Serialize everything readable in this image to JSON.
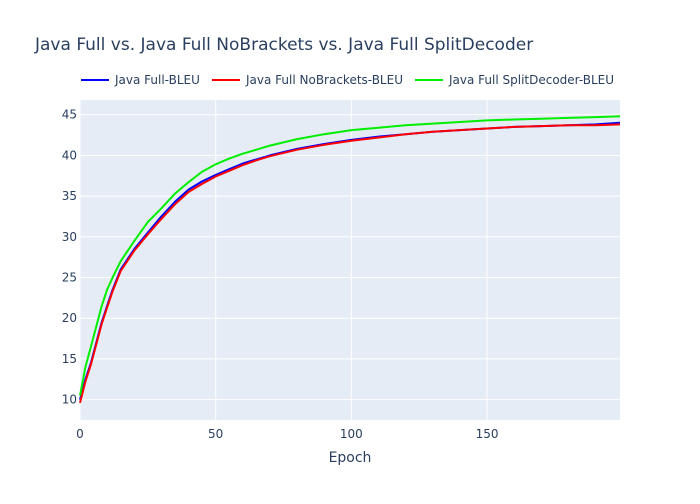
{
  "chart_data": {
    "type": "line",
    "title": "Java Full vs. Java Full NoBrackets vs. Java Full SplitDecoder",
    "xlabel": "Epoch",
    "ylabel": "",
    "xlim": [
      0,
      199
    ],
    "ylim": [
      7.5,
      46.8
    ],
    "xticks": [
      0,
      50,
      100,
      150
    ],
    "yticks": [
      10,
      15,
      20,
      25,
      30,
      35,
      40,
      45
    ],
    "grid": true,
    "legend_position": "top",
    "series": [
      {
        "name": "Java Full-BLEU",
        "color": "#0000ff",
        "x": [
          0,
          2,
          4,
          6,
          8,
          10,
          12,
          15,
          20,
          25,
          30,
          35,
          40,
          45,
          50,
          55,
          60,
          65,
          70,
          80,
          90,
          100,
          110,
          120,
          130,
          140,
          150,
          160,
          170,
          180,
          190,
          199
        ],
        "y": [
          10.0,
          12.5,
          14.5,
          17.0,
          19.5,
          21.5,
          23.5,
          26.0,
          28.5,
          30.5,
          32.5,
          34.3,
          35.8,
          36.8,
          37.6,
          38.3,
          39.0,
          39.5,
          40.0,
          40.8,
          41.4,
          41.9,
          42.3,
          42.6,
          42.9,
          43.1,
          43.3,
          43.5,
          43.6,
          43.7,
          43.8,
          44.0
        ]
      },
      {
        "name": "Java Full NoBrackets-BLEU",
        "color": "#ff0000",
        "x": [
          0,
          2,
          4,
          6,
          8,
          10,
          12,
          15,
          20,
          25,
          30,
          35,
          40,
          45,
          50,
          55,
          60,
          65,
          70,
          80,
          90,
          100,
          110,
          120,
          130,
          140,
          150,
          160,
          170,
          180,
          190,
          199
        ],
        "y": [
          9.6,
          12.2,
          14.3,
          16.8,
          19.3,
          21.3,
          23.3,
          25.8,
          28.3,
          30.3,
          32.2,
          34.0,
          35.5,
          36.5,
          37.4,
          38.1,
          38.8,
          39.4,
          39.9,
          40.7,
          41.3,
          41.8,
          42.2,
          42.6,
          42.9,
          43.1,
          43.3,
          43.5,
          43.6,
          43.7,
          43.7,
          43.8
        ]
      },
      {
        "name": "Java Full SplitDecoder-BLEU",
        "color": "#00ee00",
        "x": [
          0,
          2,
          4,
          6,
          8,
          10,
          12,
          15,
          20,
          25,
          30,
          35,
          40,
          45,
          50,
          55,
          60,
          65,
          70,
          80,
          90,
          100,
          110,
          120,
          130,
          140,
          150,
          160,
          170,
          180,
          190,
          199
        ],
        "y": [
          10.5,
          14.0,
          16.5,
          19.0,
          21.5,
          23.5,
          25.0,
          27.0,
          29.5,
          31.8,
          33.5,
          35.3,
          36.7,
          38.0,
          38.9,
          39.6,
          40.2,
          40.7,
          41.2,
          42.0,
          42.6,
          43.1,
          43.4,
          43.7,
          43.9,
          44.1,
          44.3,
          44.4,
          44.5,
          44.6,
          44.7,
          44.8
        ]
      }
    ]
  }
}
